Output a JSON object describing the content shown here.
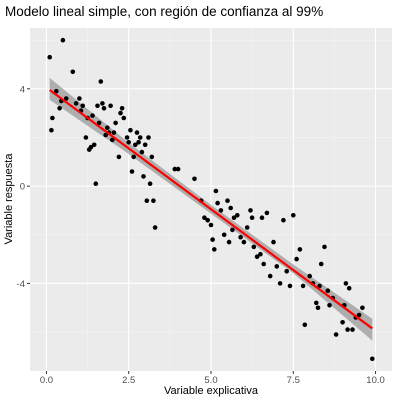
{
  "chart_data": {
    "type": "scatter",
    "title": "Modelo lineal simple, con región de confianza al 99%",
    "xlabel": "Variable explicativa",
    "ylabel": "Variable respuesta",
    "xlim": [
      -0.5,
      10.5
    ],
    "ylim": [
      -7.6,
      6.5
    ],
    "x_ticks": [
      0,
      2.5,
      5,
      7.5,
      10
    ],
    "x_tick_labels": [
      "0.0",
      "2.5",
      "5.0",
      "7.5",
      "10.0"
    ],
    "y_ticks": [
      -4,
      0,
      4
    ],
    "y_tick_labels": [
      "-4",
      "0",
      "4"
    ],
    "grid": true,
    "colors": {
      "panel_background": "#ebebeb",
      "grid_major": "#ffffff",
      "points": "#000000",
      "fit_line": "#ff0000",
      "confidence_band": "#999999"
    },
    "fit": {
      "intercept": 4.05,
      "slope": -1.0,
      "x_range": [
        0.1,
        9.9
      ],
      "confidence_band": {
        "level": "99%",
        "x": [
          0.1,
          2.5,
          5.0,
          7.5,
          9.9
        ],
        "lower": [
          3.55,
          1.32,
          -1.13,
          -3.58,
          -6.35
        ],
        "upper": [
          4.45,
          1.78,
          -0.77,
          -3.22,
          -5.45
        ]
      }
    },
    "points": [
      [
        0.1,
        5.3
      ],
      [
        0.15,
        2.3
      ],
      [
        0.18,
        2.8
      ],
      [
        0.3,
        3.9
      ],
      [
        0.4,
        3.2
      ],
      [
        0.45,
        3.5
      ],
      [
        0.5,
        6.0
      ],
      [
        0.6,
        3.6
      ],
      [
        0.8,
        4.7
      ],
      [
        0.9,
        3.4
      ],
      [
        1.0,
        3.6
      ],
      [
        1.05,
        3.1
      ],
      [
        1.1,
        3.3
      ],
      [
        1.2,
        2.0
      ],
      [
        1.25,
        2.8
      ],
      [
        1.3,
        1.5
      ],
      [
        1.35,
        1.6
      ],
      [
        1.4,
        2.9
      ],
      [
        1.45,
        1.7
      ],
      [
        1.5,
        0.1
      ],
      [
        1.55,
        3.3
      ],
      [
        1.6,
        2.6
      ],
      [
        1.65,
        4.3
      ],
      [
        1.7,
        3.4
      ],
      [
        1.75,
        3.2
      ],
      [
        1.8,
        2.1
      ],
      [
        1.85,
        2.4
      ],
      [
        1.9,
        2.2
      ],
      [
        1.95,
        3.3
      ],
      [
        2.0,
        1.9
      ],
      [
        2.05,
        2.2
      ],
      [
        2.1,
        2.6
      ],
      [
        2.2,
        1.2
      ],
      [
        2.25,
        3.0
      ],
      [
        2.3,
        3.2
      ],
      [
        2.35,
        2.8
      ],
      [
        2.45,
        2.0
      ],
      [
        2.5,
        1.8
      ],
      [
        2.55,
        2.3
      ],
      [
        2.6,
        0.6
      ],
      [
        2.65,
        1.2
      ],
      [
        2.7,
        1.7
      ],
      [
        2.75,
        2.2
      ],
      [
        2.8,
        1.8
      ],
      [
        2.85,
        2.0
      ],
      [
        2.9,
        1.4
      ],
      [
        2.95,
        0.4
      ],
      [
        3.0,
        1.7
      ],
      [
        3.05,
        -0.6
      ],
      [
        3.1,
        2.0
      ],
      [
        3.15,
        0.1
      ],
      [
        3.2,
        1.2
      ],
      [
        3.25,
        -0.6
      ],
      [
        3.3,
        -1.7
      ],
      [
        3.9,
        0.7
      ],
      [
        4.0,
        0.7
      ],
      [
        4.5,
        0.3
      ],
      [
        4.7,
        -0.6
      ],
      [
        4.8,
        -1.3
      ],
      [
        4.9,
        -1.4
      ],
      [
        5.0,
        -1.6
      ],
      [
        5.05,
        -2.2
      ],
      [
        5.1,
        -2.6
      ],
      [
        5.15,
        -0.2
      ],
      [
        5.2,
        -0.7
      ],
      [
        5.3,
        -1.0
      ],
      [
        5.4,
        -2.0
      ],
      [
        5.5,
        -0.6
      ],
      [
        5.55,
        -2.3
      ],
      [
        5.6,
        -0.9
      ],
      [
        5.65,
        -1.8
      ],
      [
        5.7,
        -1.3
      ],
      [
        5.8,
        -1.2
      ],
      [
        5.9,
        -2.1
      ],
      [
        6.0,
        -2.3
      ],
      [
        6.1,
        -1.7
      ],
      [
        6.2,
        -1.0
      ],
      [
        6.25,
        -1.3
      ],
      [
        6.3,
        -2.5
      ],
      [
        6.4,
        -2.9
      ],
      [
        6.5,
        -2.8
      ],
      [
        6.55,
        -1.3
      ],
      [
        6.6,
        -3.2
      ],
      [
        6.7,
        -1.1
      ],
      [
        6.8,
        -3.7
      ],
      [
        6.9,
        -2.3
      ],
      [
        7.0,
        -3.3
      ],
      [
        7.1,
        -4.0
      ],
      [
        7.2,
        -1.4
      ],
      [
        7.3,
        -3.5
      ],
      [
        7.4,
        -4.1
      ],
      [
        7.5,
        -1.2
      ],
      [
        7.6,
        -3.0
      ],
      [
        7.7,
        -2.6
      ],
      [
        7.8,
        -4.1
      ],
      [
        7.85,
        -5.7
      ],
      [
        8.0,
        -3.7
      ],
      [
        8.1,
        -4.0
      ],
      [
        8.2,
        -4.8
      ],
      [
        8.25,
        -5.0
      ],
      [
        8.3,
        -4.1
      ],
      [
        8.35,
        -3.2
      ],
      [
        8.45,
        -2.5
      ],
      [
        8.55,
        -4.3
      ],
      [
        8.6,
        -4.9
      ],
      [
        8.7,
        -4.6
      ],
      [
        8.8,
        -6.1
      ],
      [
        9.0,
        -5.6
      ],
      [
        9.05,
        -4.9
      ],
      [
        9.1,
        -4.0
      ],
      [
        9.15,
        -5.9
      ],
      [
        9.2,
        -4.2
      ],
      [
        9.3,
        -5.9
      ],
      [
        9.4,
        -5.4
      ],
      [
        9.5,
        -5.3
      ],
      [
        9.6,
        -5.0
      ],
      [
        9.9,
        -7.1
      ]
    ]
  }
}
